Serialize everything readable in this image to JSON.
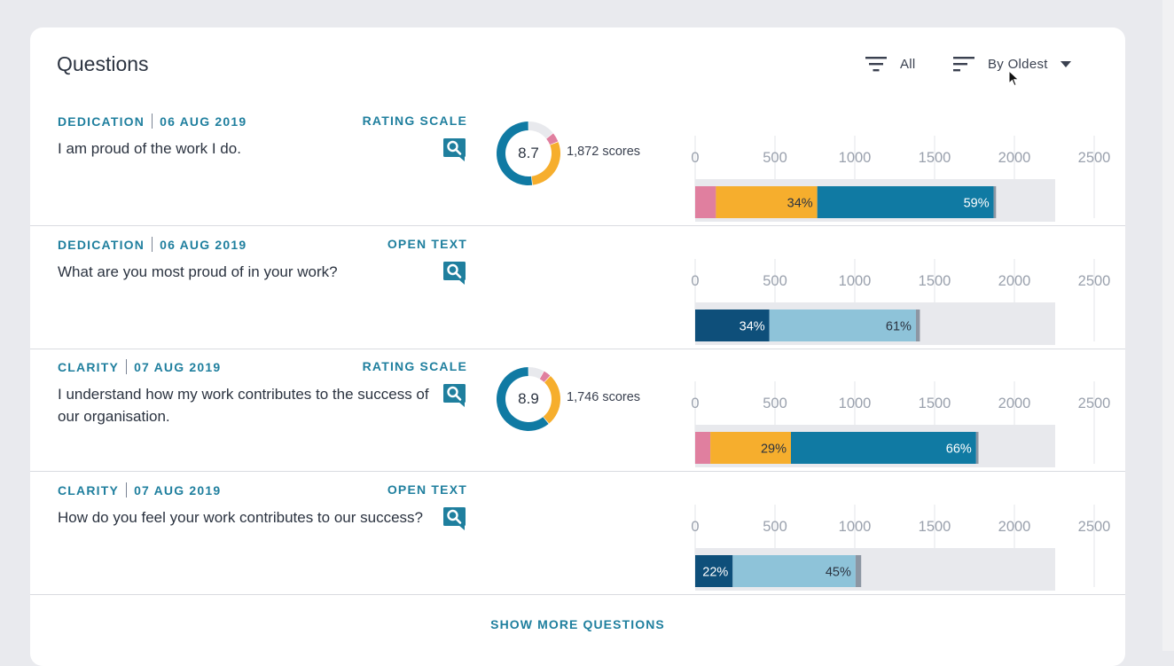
{
  "header": {
    "title": "Questions",
    "filter_label": "All",
    "sort_label": "By Oldest"
  },
  "colors": {
    "accent": "#1f7f9e",
    "negative": "#e07f9f",
    "neutral": "#f6ae2d",
    "positive": "#107aa3",
    "open_dark": "#0e4f7a",
    "open_light": "#8ec3d9",
    "remainder": "#8c96a3",
    "track": "#e8e9ed"
  },
  "axis": {
    "ticks": [
      "0",
      "500",
      "1000",
      "1500",
      "2000",
      "2500"
    ],
    "max": 2250
  },
  "questions": [
    {
      "category": "DEDICATION",
      "date": "06 AUG 2019",
      "type": "RATING SCALE",
      "text": "I am proud of the work I do.",
      "score": "8.7",
      "scores_label": "1,872 scores",
      "donut": [
        0.05,
        0.29,
        0.52,
        0.14
      ],
      "bars": [
        {
          "value": 130,
          "kind": "negative",
          "label": ""
        },
        {
          "value": 635,
          "kind": "neutral",
          "label": "34%"
        },
        {
          "value": 1105,
          "kind": "positive",
          "label": "59%"
        },
        {
          "value": 15,
          "kind": "remainder",
          "label": ""
        }
      ]
    },
    {
      "category": "DEDICATION",
      "date": "06 AUG 2019",
      "type": "OPEN TEXT",
      "text": "What are you most proud of in your work?",
      "bars": [
        {
          "value": 465,
          "kind": "open_dark",
          "label": "34%"
        },
        {
          "value": 918,
          "kind": "open_light",
          "label": "61%"
        },
        {
          "value": 25,
          "kind": "remainder",
          "label": ""
        }
      ]
    },
    {
      "category": "CLARITY",
      "date": "07 AUG 2019",
      "type": "RATING SCALE",
      "text": "I understand how my work contributes to the success of our organisation.",
      "score": "8.9",
      "scores_label": "1,746 scores",
      "donut": [
        0.04,
        0.27,
        0.61,
        0.08
      ],
      "bars": [
        {
          "value": 95,
          "kind": "negative",
          "label": ""
        },
        {
          "value": 505,
          "kind": "neutral",
          "label": "29%"
        },
        {
          "value": 1160,
          "kind": "positive",
          "label": "66%"
        },
        {
          "value": 15,
          "kind": "remainder",
          "label": ""
        }
      ]
    },
    {
      "category": "CLARITY",
      "date": "07 AUG 2019",
      "type": "OPEN TEXT",
      "text": "How do you feel your work contributes to our success?",
      "bars": [
        {
          "value": 235,
          "kind": "open_dark",
          "label": "22%"
        },
        {
          "value": 770,
          "kind": "open_light",
          "label": "45%"
        },
        {
          "value": 35,
          "kind": "remainder",
          "label": ""
        }
      ]
    }
  ],
  "footer": {
    "show_more_label": "SHOW MORE QUESTIONS"
  }
}
